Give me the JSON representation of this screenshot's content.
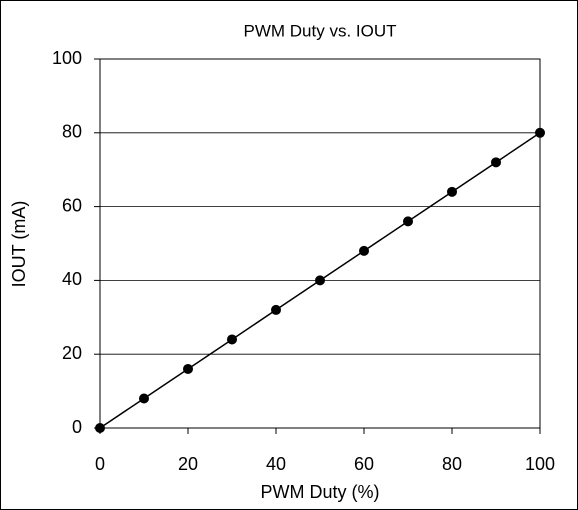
{
  "chart_data": {
    "type": "line",
    "title": "PWM Duty vs. IOUT",
    "x_label": "PWM Duty (%)",
    "y_label": "IOUT (mA)",
    "x": [
      0,
      10,
      20,
      30,
      40,
      50,
      60,
      70,
      80,
      90,
      100
    ],
    "series": [
      {
        "color": "#000000",
        "values": [
          0,
          8,
          16,
          24,
          32,
          40,
          48,
          56,
          64,
          72,
          80
        ]
      }
    ],
    "xlim": [
      0,
      100
    ],
    "xticks": [
      0,
      20,
      40,
      60,
      80,
      100
    ],
    "ylim": [
      0,
      100
    ],
    "yticks": [
      0,
      20,
      40,
      60,
      80,
      100
    ],
    "grid": true
  }
}
